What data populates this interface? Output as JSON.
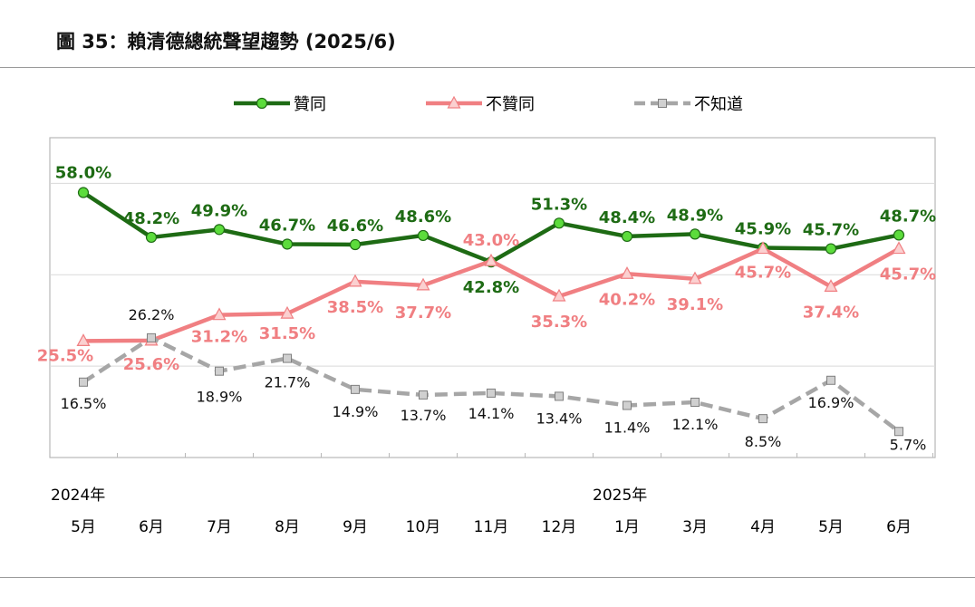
{
  "title": "圖 35：賴清德總統聲望趨勢 (2025/6)",
  "chart_data": {
    "type": "line",
    "categories": [
      "5月",
      "6月",
      "7月",
      "8月",
      "9月",
      "10月",
      "11月",
      "12月",
      "1月",
      "3月",
      "4月",
      "5月",
      "6月"
    ],
    "year_labels": [
      {
        "text": "2024年",
        "index": 0
      },
      {
        "text": "2025年",
        "index": 8
      }
    ],
    "ylim": [
      0,
      70
    ],
    "grid": "horizontal",
    "legend_position": "top",
    "series": [
      {
        "name": "贊同",
        "color": "#1e6b14",
        "marker": "circle",
        "marker_color": "#5cdc3c",
        "dash": "solid",
        "values": [
          58.0,
          48.2,
          49.9,
          46.7,
          46.6,
          48.6,
          42.8,
          51.3,
          48.4,
          48.9,
          45.9,
          45.7,
          48.7
        ],
        "labels": [
          "58.0%",
          "48.2%",
          "49.9%",
          "46.7%",
          "46.6%",
          "48.6%",
          "42.8%",
          "51.3%",
          "48.4%",
          "48.9%",
          "45.9%",
          "45.7%",
          "48.7%"
        ]
      },
      {
        "name": "不贊同",
        "color": "#f07f82",
        "marker": "triangle",
        "marker_color": "#fbd0d0",
        "dash": "solid",
        "values": [
          25.5,
          25.6,
          31.2,
          31.5,
          38.5,
          37.7,
          43.0,
          35.3,
          40.2,
          39.1,
          45.7,
          37.4,
          45.7
        ],
        "labels": [
          "25.5%",
          "25.6%",
          "31.2%",
          "31.5%",
          "38.5%",
          "37.7%",
          "43.0%",
          "35.3%",
          "40.2%",
          "39.1%",
          "45.7%",
          "37.4%",
          "45.7%"
        ]
      },
      {
        "name": "不知道",
        "color": "#a6a6a6",
        "marker": "square",
        "marker_color": "#d0d0d0",
        "dash": "dashed",
        "values": [
          16.5,
          26.2,
          18.9,
          21.7,
          14.9,
          13.7,
          14.1,
          13.4,
          11.4,
          12.1,
          8.5,
          16.9,
          5.7
        ],
        "labels": [
          "16.5%",
          "26.2%",
          "18.9%",
          "21.7%",
          "14.9%",
          "13.7%",
          "14.1%",
          "13.4%",
          "11.4%",
          "12.1%",
          "8.5%",
          "16.9%",
          "5.7%"
        ]
      }
    ]
  }
}
